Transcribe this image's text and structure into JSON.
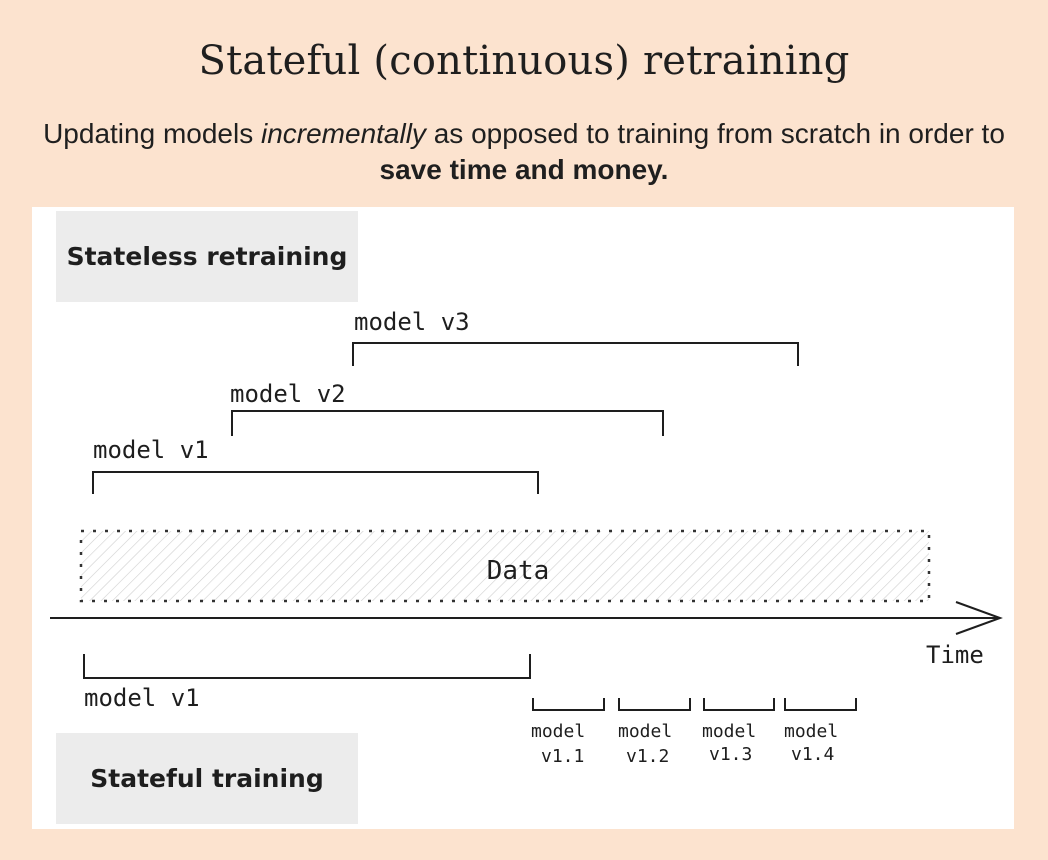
{
  "title": "Stateful (continuous) retraining",
  "subtitle": {
    "part1": "Updating models ",
    "emphasis": "incrementally",
    "part2": " as opposed to training from scratch in order to ",
    "strong": "save time and money."
  },
  "diagram": {
    "stateless_label": "Stateless retraining",
    "stateful_label": "Stateful training",
    "data_label": "Data",
    "time_label": "Time",
    "stateless_models": [
      "model v3",
      "model v2",
      "model v1"
    ],
    "stateful_base_model": "model v1",
    "stateful_increments": [
      {
        "word": "model",
        "version": "v1.1"
      },
      {
        "word": "model",
        "version": "v1.2"
      },
      {
        "word": "model",
        "version": "v1.3"
      },
      {
        "word": "model",
        "version": "v1.4"
      }
    ]
  }
}
